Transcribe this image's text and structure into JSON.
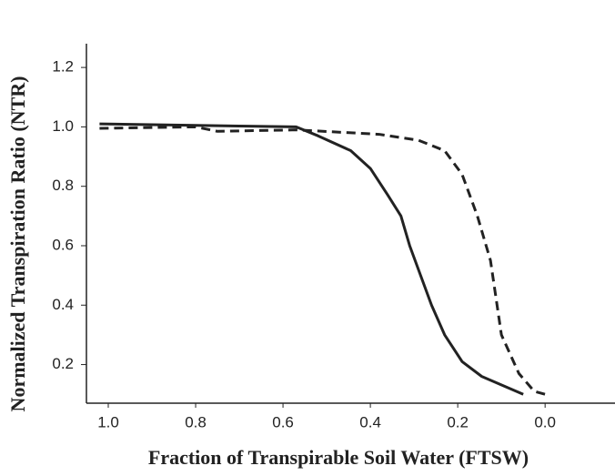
{
  "chart_data": {
    "type": "line",
    "x_label": "Fraction of Transpirable Soil Water (FTSW)",
    "y_label": "Normalized Transpiration Ratio (NTR)",
    "xlim": [
      1.05,
      -0.16
    ],
    "ylim": [
      0.07,
      1.28
    ],
    "xticks": [
      {
        "value": 1,
        "label": "1.0"
      },
      0.8,
      0.6,
      0.4,
      0.2,
      {
        "value": 0,
        "label": "0.0"
      }
    ],
    "yticks": [
      0.2,
      0.4,
      0.6,
      0.8,
      {
        "value": 1,
        "label": "1.0"
      },
      1.2
    ],
    "series": [
      {
        "color": "#222222",
        "dashed": false,
        "x": [
          1.02,
          0.57,
          0.52,
          0.445,
          0.4,
          0.36,
          0.33,
          0.31,
          0.285,
          0.26,
          0.23,
          0.19,
          0.145,
          0.05
        ],
        "values": [
          1.01,
          1.0,
          0.97,
          0.92,
          0.86,
          0.77,
          0.7,
          0.6,
          0.5,
          0.4,
          0.3,
          0.21,
          0.16,
          0.1
        ]
      },
      {
        "color": "#222222",
        "dashed": true,
        "x": [
          1.02,
          0.8,
          0.75,
          0.57,
          0.38,
          0.29,
          0.23,
          0.19,
          0.155,
          0.125,
          0.11,
          0.1,
          0.06,
          0.025,
          0.0
        ],
        "values": [
          0.995,
          1.0,
          0.985,
          0.99,
          0.975,
          0.955,
          0.92,
          0.84,
          0.7,
          0.55,
          0.4,
          0.3,
          0.17,
          0.11,
          0.1
        ]
      }
    ]
  }
}
